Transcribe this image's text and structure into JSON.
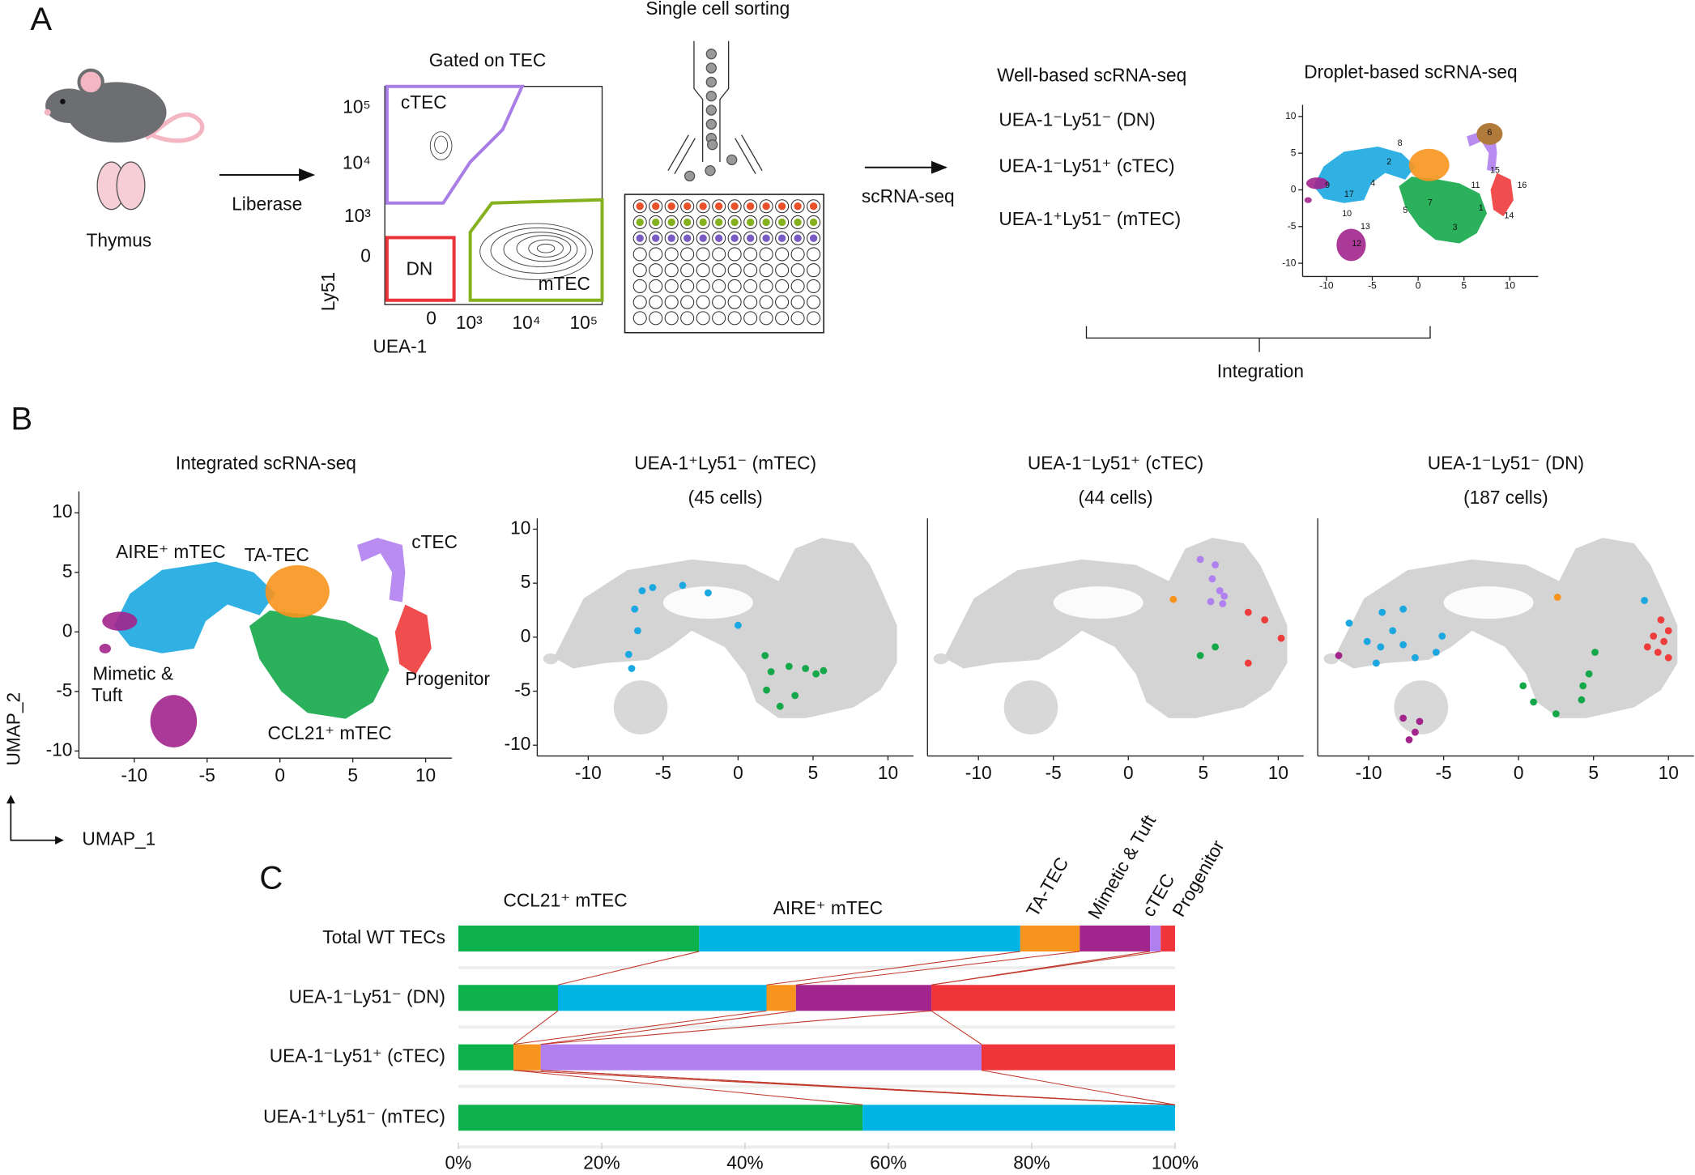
{
  "panel_a": {
    "label": "A",
    "thymus": "Thymus",
    "digest": "Liberase",
    "facs": {
      "title": "Gated on TEC",
      "gates": [
        "cTEC",
        "DN",
        "mTEC"
      ],
      "ylabel": "Ly51",
      "xlabel": "UEA-1",
      "yticks": [
        "10⁵",
        "10⁴",
        "10³",
        0
      ],
      "xticks": [
        0,
        "10³",
        "10⁴",
        "10⁵"
      ]
    },
    "sorting": "Single cell sorting",
    "method": "scRNA-seq",
    "well": {
      "title": "Well-based scRNA-seq",
      "populations": [
        "UEA-1⁻Ly51⁻ (DN)",
        "UEA-1⁻Ly51⁺ (cTEC)",
        "UEA-1⁺Ly51⁻ (mTEC)"
      ],
      "colors": [
        "#e8343a",
        "#b07ff0",
        "#8db21e"
      ]
    },
    "droplet": {
      "title": "Droplet-based scRNA-seq",
      "clusters": [
        "1",
        "2",
        "3",
        "4",
        "5",
        "6",
        "7",
        "8",
        "9",
        "10",
        "11",
        "12",
        "13",
        "14",
        "15",
        "16",
        "17"
      ],
      "xlim": [
        -12.6,
        13.1
      ],
      "ylim": [
        -11.8,
        11.6
      ],
      "xticks": [
        -10,
        -5,
        0,
        5,
        10
      ],
      "yticks": [
        10,
        5,
        0,
        -5,
        -10
      ]
    },
    "integration": "Integration"
  },
  "panel_b": {
    "label": "B",
    "xlabel": "UMAP_1",
    "ylabel": "UMAP_2",
    "umaps": [
      {
        "title": "Integrated scRNA-seq",
        "clusters": [
          "AIRE⁺ mTEC",
          "TA-TEC",
          "cTEC",
          "Mimetic &",
          "Tuft",
          "Progenitor",
          "CCL21⁺ mTEC"
        ],
        "cluster_colors": [
          "#1ba8e0",
          "#f7941d",
          "#b07ff0",
          "#a2248d",
          "#a2248d",
          "#ee3b3b",
          "#14a84a"
        ],
        "xlim": [
          -13.8,
          11.8
        ],
        "ylim": [
          -10.6,
          11.8
        ],
        "xticks": [
          -10,
          -5,
          0,
          5,
          10
        ],
        "yticks": [
          10,
          5,
          0,
          -5,
          -10
        ]
      },
      {
        "title": "UEA-1⁺Ly51⁻ (mTEC)",
        "subtitle": "(45 cells)",
        "color": "#8db21e",
        "xlim": [
          -13.4,
          11.7
        ],
        "ylim": [
          -11,
          11
        ],
        "xticks": [
          -10,
          -5,
          0,
          5,
          10
        ],
        "yticks": [
          10,
          5,
          0,
          -5,
          -10
        ],
        "groups": [
          {
            "color": "#1ba8e0",
            "x": [
              -6.4,
              -5.7,
              -3.7,
              -2.0,
              -6.9,
              -6.7,
              0,
              -7.3,
              -7.1
            ],
            "y": [
              4.3,
              4.6,
              4.8,
              4.1,
              2.6,
              0.6,
              1.1,
              -1.6,
              -2.9
            ]
          },
          {
            "color": "#14a84a",
            "x": [
              1.8,
              2.2,
              3.4,
              4.5,
              5.2,
              5.7,
              1.9,
              3.8,
              2.8
            ],
            "y": [
              -1.7,
              -3.2,
              -2.7,
              -2.9,
              -3.4,
              -3.1,
              -4.9,
              -5.4,
              -6.4
            ]
          }
        ]
      },
      {
        "title": "UEA-1⁻Ly51⁺ (cTEC)",
        "subtitle": "(44 cells)",
        "color": "#b07ff0",
        "xlim": [
          -13.4,
          11.7
        ],
        "ylim": [
          -11,
          11
        ],
        "xticks": [
          -10,
          -5,
          0,
          5,
          10
        ],
        "groups": [
          {
            "color": "#b07ff0",
            "x": [
              4.8,
              5.8,
              5.6,
              6.1,
              6.4,
              5.5,
              6.3
            ],
            "y": [
              7.2,
              6.7,
              5.4,
              4.3,
              3.8,
              3.3,
              3.1
            ]
          },
          {
            "color": "#ee3b3b",
            "x": [
              8.0,
              9.1,
              10.2,
              8.0
            ],
            "y": [
              2.3,
              1.6,
              -0.1,
              -2.4
            ]
          },
          {
            "color": "#f7941d",
            "x": [
              3.0
            ],
            "y": [
              3.5
            ]
          },
          {
            "color": "#14a84a",
            "x": [
              4.8,
              5.8
            ],
            "y": [
              -1.7,
              -0.9
            ]
          }
        ]
      },
      {
        "title": "UEA-1⁻Ly51⁻ (DN)",
        "subtitle": "(187 cells)",
        "color": "#e8343a",
        "xlim": [
          -13.4,
          11.7
        ],
        "ylim": [
          -11,
          11
        ],
        "xticks": [
          -10,
          -5,
          0,
          5,
          10
        ],
        "groups": [
          {
            "color": "#1ba8e0",
            "x": [
              -11.3,
              -9.1,
              -7.7,
              -8.4,
              -10.1,
              -9.2,
              -7.7,
              -6.9,
              -9.5,
              -5.5,
              8.4,
              -5.1
            ],
            "y": [
              1.3,
              2.3,
              2.6,
              0.6,
              -0.4,
              -0.9,
              -0.7,
              -1.9,
              -2.4,
              -1.4,
              3.4,
              0.1
            ]
          },
          {
            "color": "#a2248d",
            "x": [
              -12.0,
              -7.7,
              -6.9,
              -7.3,
              -6.6
            ],
            "y": [
              -1.7,
              -7.5,
              -8.8,
              -9.5,
              -7.8
            ]
          },
          {
            "color": "#14a84a",
            "x": [
              0.3,
              1.0,
              2.5,
              4.3,
              4.7,
              5.1,
              4.2
            ],
            "y": [
              -4.5,
              -6.0,
              -7.1,
              -4.5,
              -3.4,
              -1.4,
              -5.8
            ]
          },
          {
            "color": "#f7941d",
            "x": [
              2.6
            ],
            "y": [
              3.7
            ]
          },
          {
            "color": "#ee3b3b",
            "x": [
              9.0,
              9.7,
              9.3,
              10.0,
              8.6,
              9.5,
              10.0
            ],
            "y": [
              0.1,
              -0.4,
              -1.4,
              0.6,
              -0.9,
              1.6,
              -1.9
            ]
          }
        ]
      }
    ]
  },
  "chart_data": {
    "type": "bar",
    "orientation": "horizontal",
    "stacked": true,
    "label": "C",
    "categories": [
      "Total WT TECs",
      "UEA-1⁻Ly51⁻ (DN)",
      "UEA-1⁻Ly51⁺ (cTEC)",
      "UEA-1⁺Ly51⁻ (mTEC)"
    ],
    "category_colors": [
      "#111111",
      "#e8343a",
      "#b07ff0",
      "#8db21e"
    ],
    "series": [
      {
        "name": "CCL21⁺ mTEC",
        "color": "#0db14b",
        "values": [
          33.6,
          13.9,
          7.7,
          56.4
        ]
      },
      {
        "name": "AIRE⁺ mTEC",
        "color": "#00b4e6",
        "values": [
          44.8,
          29.1,
          0,
          43.6
        ]
      },
      {
        "name": "TA-TEC",
        "color": "#f7941d",
        "values": [
          8.3,
          4.1,
          3.8,
          0
        ]
      },
      {
        "name": "Mimetic & Tuft",
        "color": "#a2248d",
        "values": [
          9.8,
          18.9,
          0,
          0
        ]
      },
      {
        "name": "cTEC",
        "color": "#b07ff0",
        "values": [
          1.5,
          0,
          61.5,
          0
        ]
      },
      {
        "name": "Progenitor",
        "color": "#f0353a",
        "values": [
          2.0,
          34.0,
          27.0,
          0
        ]
      }
    ],
    "xlim": [
      0,
      100
    ],
    "xticks": [
      {
        "value": 0,
        "label": "0%"
      },
      {
        "value": 20,
        "label": "20%"
      },
      {
        "value": 40,
        "label": "40%"
      },
      {
        "value": 60,
        "label": "60%"
      },
      {
        "value": 80,
        "label": "80%"
      },
      {
        "value": 100,
        "label": "100%"
      }
    ]
  }
}
